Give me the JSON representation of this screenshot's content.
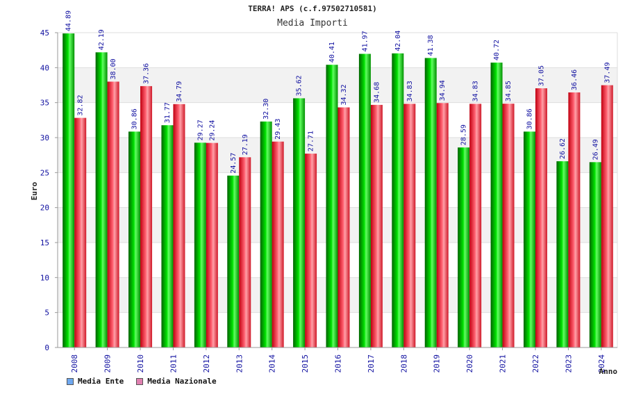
{
  "chart_data": {
    "type": "bar",
    "title": "TERRA! APS (c.f.97502710581)",
    "subtitle": "Media Importi",
    "xlabel": "Anno",
    "ylabel": "Euro",
    "ylim": [
      0,
      45
    ],
    "yticks": [
      0,
      5,
      10,
      15,
      20,
      25,
      30,
      35,
      40,
      45
    ],
    "grid": true,
    "legend_position": "bottom-left",
    "categories": [
      "2008",
      "2009",
      "2010",
      "2011",
      "2012",
      "2013",
      "2014",
      "2015",
      "2016",
      "2017",
      "2018",
      "2019",
      "2020",
      "2021",
      "2022",
      "2023",
      "2024"
    ],
    "series": [
      {
        "name": "Media Ente",
        "color": "#00b000",
        "legend_color": "#6fa8f0",
        "values": [
          44.89,
          42.19,
          30.86,
          31.77,
          29.27,
          24.57,
          32.3,
          35.62,
          40.41,
          41.97,
          42.04,
          41.38,
          28.59,
          40.72,
          30.86,
          26.62,
          26.49
        ],
        "labels": [
          "44.89",
          "42.19",
          "30.86",
          "31.77",
          "29.27",
          "24.57",
          "32.30",
          "35.62",
          "40.41",
          "41.97",
          "42.04",
          "41.38",
          "28.59",
          "40.72",
          "30.86",
          "26.62",
          "26.49"
        ]
      },
      {
        "name": "Media Nazionale",
        "color": "#e0303a",
        "legend_color": "#e080b0",
        "values": [
          32.82,
          38.0,
          37.36,
          34.79,
          29.24,
          27.19,
          29.43,
          27.71,
          34.32,
          34.68,
          34.83,
          34.94,
          34.83,
          34.85,
          37.05,
          36.46,
          37.49
        ],
        "labels": [
          "32.82",
          "38.00",
          "37.36",
          "34.79",
          "29.24",
          "27.19",
          "29.43",
          "27.71",
          "34.32",
          "34.68",
          "34.83",
          "34.94",
          "34.83",
          "34.85",
          "37.05",
          "36.46",
          "37.49"
        ]
      }
    ]
  }
}
